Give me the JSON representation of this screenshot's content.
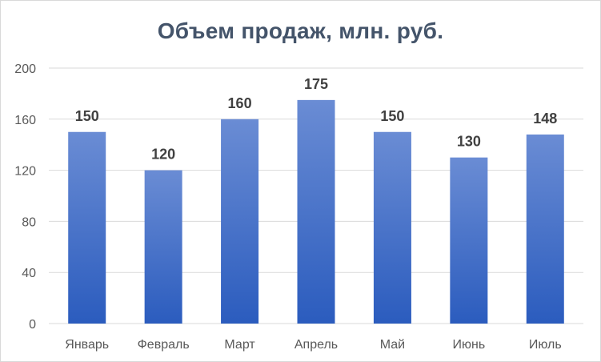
{
  "chart_data": {
    "type": "bar",
    "title": "Объем продаж, млн. руб.",
    "xlabel": "",
    "ylabel": "",
    "categories": [
      "Январь",
      "Февраль",
      "Март",
      "Апрель",
      "Май",
      "Июнь",
      "Июль"
    ],
    "values": [
      150,
      120,
      160,
      175,
      150,
      130,
      148
    ],
    "ylim": [
      0,
      200
    ],
    "yticks": [
      "0",
      "40",
      "80",
      "120",
      "160",
      "200"
    ],
    "data_labels": [
      "150",
      "120",
      "160",
      "175",
      "150",
      "130",
      "148"
    ],
    "grid": true,
    "legend": "none",
    "colors": {
      "bar_top": "#6a8cd4",
      "bar_bottom": "#2b5cbe",
      "grid": "#d9d9d9",
      "title": "#44546a",
      "label": "#404040"
    }
  }
}
